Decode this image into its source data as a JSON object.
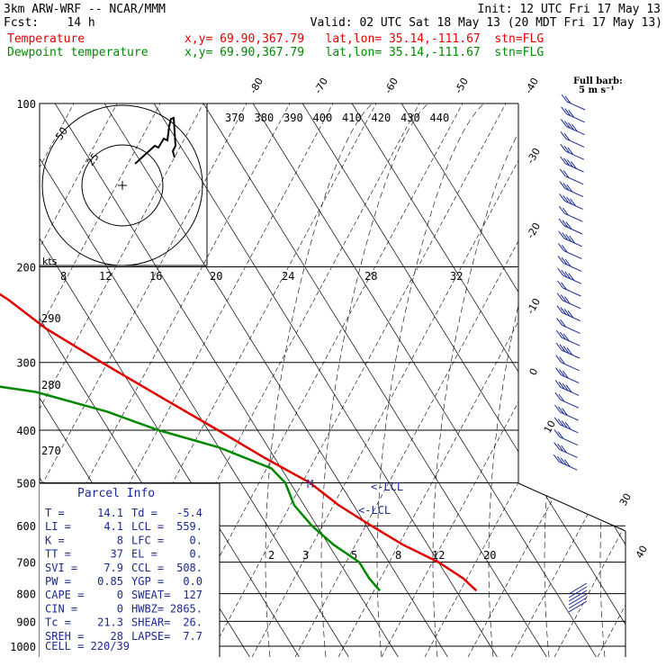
{
  "header": {
    "model": "3km ARW-WRF -- NCAR/MMM",
    "init": "Init: 12 UTC Fri 17 May 13",
    "fcst": "Fcst:    14 h",
    "valid": "Valid: 02 UTC Sat 18 May 13 (20 MDT Fri 17 May 13)",
    "temp_label": "Temperature",
    "temp_loc": "x,y= 69.90,367.79   lat,lon= 35.14,-111.67  stn=FLG",
    "dew_label": "Dewpoint temperature",
    "dew_loc": "x,y= 69.90,367.79   lat,lon= 35.14,-111.67  stn=FLG"
  },
  "colors": {
    "temperature": "#e00000",
    "dewpoint": "#008800",
    "wind": "#1a2a90",
    "parcel": "#1a2a90"
  },
  "full_barb_label": "Full barb:",
  "full_barb_value": "5 m s⁻¹",
  "hodograph": {
    "units": "kts",
    "ring_labels": [
      "25",
      "50"
    ]
  },
  "chart_data": {
    "type": "line",
    "subtype": "skew-T log-P sounding",
    "y_axis": {
      "label": "pressure (hPa)",
      "scale": "log",
      "range": [
        1000,
        100
      ],
      "ticks": [
        100,
        200,
        300,
        400,
        500,
        600,
        700,
        800,
        900,
        1000
      ]
    },
    "temperature_isotherm_labels": [
      "-80",
      "-70",
      "-60",
      "-50",
      "-40",
      "-30",
      "-20",
      "-10",
      "0",
      "10",
      "30",
      "40"
    ],
    "theta_labels": [
      "370",
      "380",
      "390",
      "400",
      "410",
      "420",
      "430",
      "440"
    ],
    "theta_e_labels": [
      "290",
      "280",
      "270"
    ],
    "wind_speed_labels": [
      "8",
      "12",
      "16",
      "20",
      "24",
      "28",
      "32"
    ],
    "mixing_ratio_labels": [
      "2",
      "3",
      "5",
      "8",
      "12",
      "20"
    ],
    "lcl_labels": [
      "<-LCL",
      "<-LCL"
    ],
    "series": [
      {
        "name": "Temperature",
        "points": [
          [
            100,
            -58
          ],
          [
            110,
            -60
          ],
          [
            120,
            -58
          ],
          [
            130,
            -56
          ],
          [
            140,
            -55
          ],
          [
            150,
            -53
          ],
          [
            170,
            -52
          ],
          [
            190,
            -49
          ],
          [
            210,
            -48
          ],
          [
            230,
            -44
          ],
          [
            260,
            -40
          ],
          [
            300,
            -33
          ],
          [
            350,
            -25
          ],
          [
            400,
            -18
          ],
          [
            450,
            -12
          ],
          [
            500,
            -6
          ],
          [
            550,
            -3
          ],
          [
            600,
            1
          ],
          [
            650,
            5
          ],
          [
            700,
            10
          ],
          [
            750,
            13
          ],
          [
            790,
            14.1
          ]
        ]
      },
      {
        "name": "Dewpoint temperature",
        "points": [
          [
            100,
            -100
          ],
          [
            130,
            -97
          ],
          [
            160,
            -92
          ],
          [
            190,
            -87
          ],
          [
            220,
            -80
          ],
          [
            260,
            -74
          ],
          [
            300,
            -70
          ],
          [
            320,
            -68
          ],
          [
            340,
            -50
          ],
          [
            370,
            -38
          ],
          [
            400,
            -30
          ],
          [
            430,
            -20
          ],
          [
            470,
            -12
          ],
          [
            500,
            -11
          ],
          [
            550,
            -12
          ],
          [
            600,
            -11
          ],
          [
            650,
            -9
          ],
          [
            700,
            -6
          ],
          [
            750,
            -6
          ],
          [
            790,
            -5.4
          ]
        ]
      }
    ]
  },
  "parcel": {
    "title": "Parcel Info",
    "rows": [
      [
        "T  =",
        "14.1",
        "Td =",
        "-5.4"
      ],
      [
        "LI =",
        "4.1",
        "LCL =",
        "559."
      ],
      [
        "K  =",
        "8",
        "LFC =",
        "0."
      ],
      [
        "TT =",
        "37",
        "EL  =",
        "0."
      ],
      [
        "SVI =",
        "7.9",
        "CCL =",
        "508."
      ],
      [
        "PW =",
        "0.85",
        "YGP =",
        "0.0"
      ],
      [
        "CAPE =",
        "0",
        "SWEAT=",
        "127"
      ],
      [
        "CIN  =",
        "0",
        "HWBZ=",
        "2865."
      ],
      [
        "Tc  =",
        "21.3",
        "SHEAR=",
        "26."
      ],
      [
        "SREH =",
        "28",
        "LAPSE=",
        "7.7"
      ]
    ],
    "cell": "CELL = 220/39"
  }
}
